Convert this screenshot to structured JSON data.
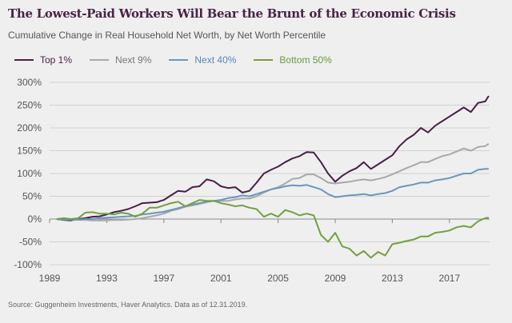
{
  "chart_data": {
    "type": "line",
    "title": "The Lowest-Paid Workers Will Bear the Brunt of the Economic Crisis",
    "subtitle": "Cumulative Change in Real Household Net Worth, by Net Worth Percentile",
    "source": "Source: Guggenheim Investments, Haver Analytics. Data as of 12.31.2019.",
    "xlim": [
      1989,
      2020.5
    ],
    "ylim": [
      -100,
      300
    ],
    "x_ticks": [
      "1989",
      "1993",
      "1997",
      "2001",
      "2005",
      "2009",
      "2013",
      "2017"
    ],
    "y_ticks": [
      "300%",
      "250%",
      "200%",
      "150%",
      "100%",
      "50%",
      "0%",
      "-50%",
      "-100%"
    ],
    "grid": "horizontal",
    "legend": "top-left",
    "x": [
      1989.5,
      1990,
      1990.5,
      1991,
      1991.5,
      1992,
      1992.5,
      1993,
      1993.5,
      1994,
      1994.5,
      1995,
      1995.5,
      1996,
      1996.5,
      1997,
      1997.5,
      1998,
      1998.5,
      1999,
      1999.5,
      2000,
      2000.5,
      2001,
      2001.5,
      2002,
      2002.5,
      2003,
      2003.5,
      2004,
      2004.5,
      2005,
      2005.5,
      2006,
      2006.5,
      2007,
      2007.5,
      2008,
      2008.5,
      2009,
      2009.5,
      2010,
      2010.5,
      2011,
      2011.5,
      2012,
      2012.5,
      2013,
      2013.5,
      2014,
      2014.5,
      2015,
      2015.5,
      2016,
      2016.5,
      2017,
      2017.5,
      2018,
      2018.5,
      2019,
      2019.5,
      2019.75
    ],
    "series": [
      {
        "name": "Top 1%",
        "color": "#4a1e45",
        "values": [
          0,
          -2,
          -3,
          0,
          2,
          5,
          6,
          10,
          15,
          18,
          22,
          28,
          35,
          36,
          37,
          42,
          52,
          62,
          60,
          70,
          72,
          87,
          83,
          72,
          68,
          70,
          58,
          62,
          80,
          100,
          108,
          115,
          125,
          133,
          138,
          147,
          146,
          125,
          100,
          82,
          95,
          105,
          112,
          125,
          110,
          120,
          130,
          140,
          160,
          175,
          185,
          200,
          190,
          205,
          215,
          225,
          235,
          245,
          235,
          255,
          258,
          270
        ]
      },
      {
        "name": "Next 9%",
        "color": "#a9a9a9",
        "values": [
          0,
          -1,
          -1,
          -2,
          -2,
          -3,
          -3,
          -3,
          -2,
          -2,
          -1,
          0,
          2,
          5,
          8,
          12,
          18,
          22,
          27,
          30,
          33,
          37,
          40,
          40,
          40,
          43,
          45,
          45,
          50,
          58,
          65,
          70,
          78,
          88,
          90,
          98,
          98,
          90,
          80,
          78,
          80,
          82,
          85,
          87,
          85,
          88,
          92,
          98,
          105,
          112,
          118,
          125,
          125,
          132,
          138,
          142,
          148,
          155,
          150,
          158,
          160,
          165
        ]
      },
      {
        "name": "Next 40%",
        "color": "#6b96bf",
        "values": [
          0,
          -1,
          -1,
          -1,
          0,
          0,
          2,
          3,
          4,
          5,
          6,
          7,
          10,
          12,
          14,
          16,
          20,
          24,
          28,
          32,
          35,
          38,
          40,
          42,
          46,
          48,
          52,
          50,
          55,
          60,
          65,
          68,
          72,
          74,
          73,
          75,
          70,
          65,
          55,
          48,
          50,
          52,
          53,
          55,
          52,
          55,
          57,
          62,
          70,
          73,
          76,
          80,
          80,
          85,
          87,
          90,
          95,
          100,
          100,
          108,
          110,
          110
        ]
      },
      {
        "name": "Bottom 50%",
        "color": "#72a040",
        "values": [
          0,
          2,
          0,
          2,
          14,
          15,
          12,
          12,
          10,
          14,
          12,
          5,
          12,
          25,
          25,
          30,
          35,
          38,
          28,
          35,
          42,
          40,
          40,
          35,
          32,
          28,
          30,
          25,
          22,
          5,
          12,
          5,
          20,
          15,
          8,
          12,
          8,
          -35,
          -50,
          -30,
          -60,
          -65,
          -80,
          -70,
          -85,
          -72,
          -80,
          -55,
          -52,
          -48,
          -45,
          -38,
          -38,
          -30,
          -28,
          -25,
          -18,
          -15,
          -18,
          -5,
          2,
          3
        ]
      }
    ]
  }
}
